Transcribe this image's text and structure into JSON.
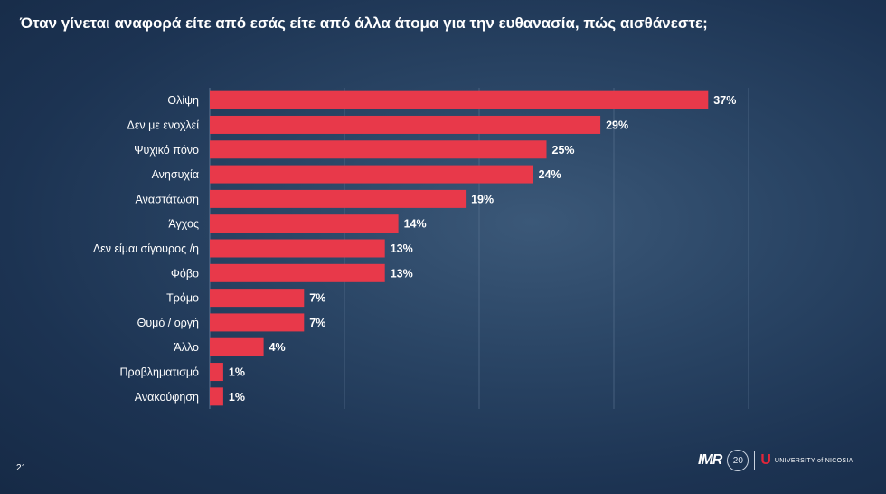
{
  "page": {
    "title": "Όταν γίνεται αναφορά είτε από εσάς είτε από άλλα άτομα για την ευθανασία, πώς αισθάνεστε;",
    "page_number": "21"
  },
  "footer": {
    "imr_logo": "IMR",
    "anniversary": "20",
    "university_logo": "UNIVERSITY of NICOSIA"
  },
  "colors": {
    "bar": "#e8394a",
    "grid": "#5c7593",
    "text": "#ffffff"
  },
  "chart_data": {
    "type": "bar",
    "orientation": "horizontal",
    "categories": [
      "Θλίψη",
      "Δεν με ενοχλεί",
      "Ψυχικό πόνο",
      "Ανησυχία",
      "Αναστάτωση",
      "Άγχος",
      "Δεν είμαι σίγουρος /η",
      "Φόβο",
      "Τρόμο",
      "Θυμό / οργή",
      "Άλλο",
      "Προβληματισμό",
      "Ανακούφηση"
    ],
    "values": [
      37,
      29,
      25,
      24,
      19,
      14,
      13,
      13,
      7,
      7,
      4,
      1,
      1
    ],
    "data_labels": [
      "37%",
      "29%",
      "25%",
      "24%",
      "19%",
      "14%",
      "13%",
      "13%",
      "7%",
      "7%",
      "4%",
      "1%",
      "1%"
    ],
    "xlim": [
      0,
      40
    ],
    "grid": true,
    "legend": "none"
  }
}
